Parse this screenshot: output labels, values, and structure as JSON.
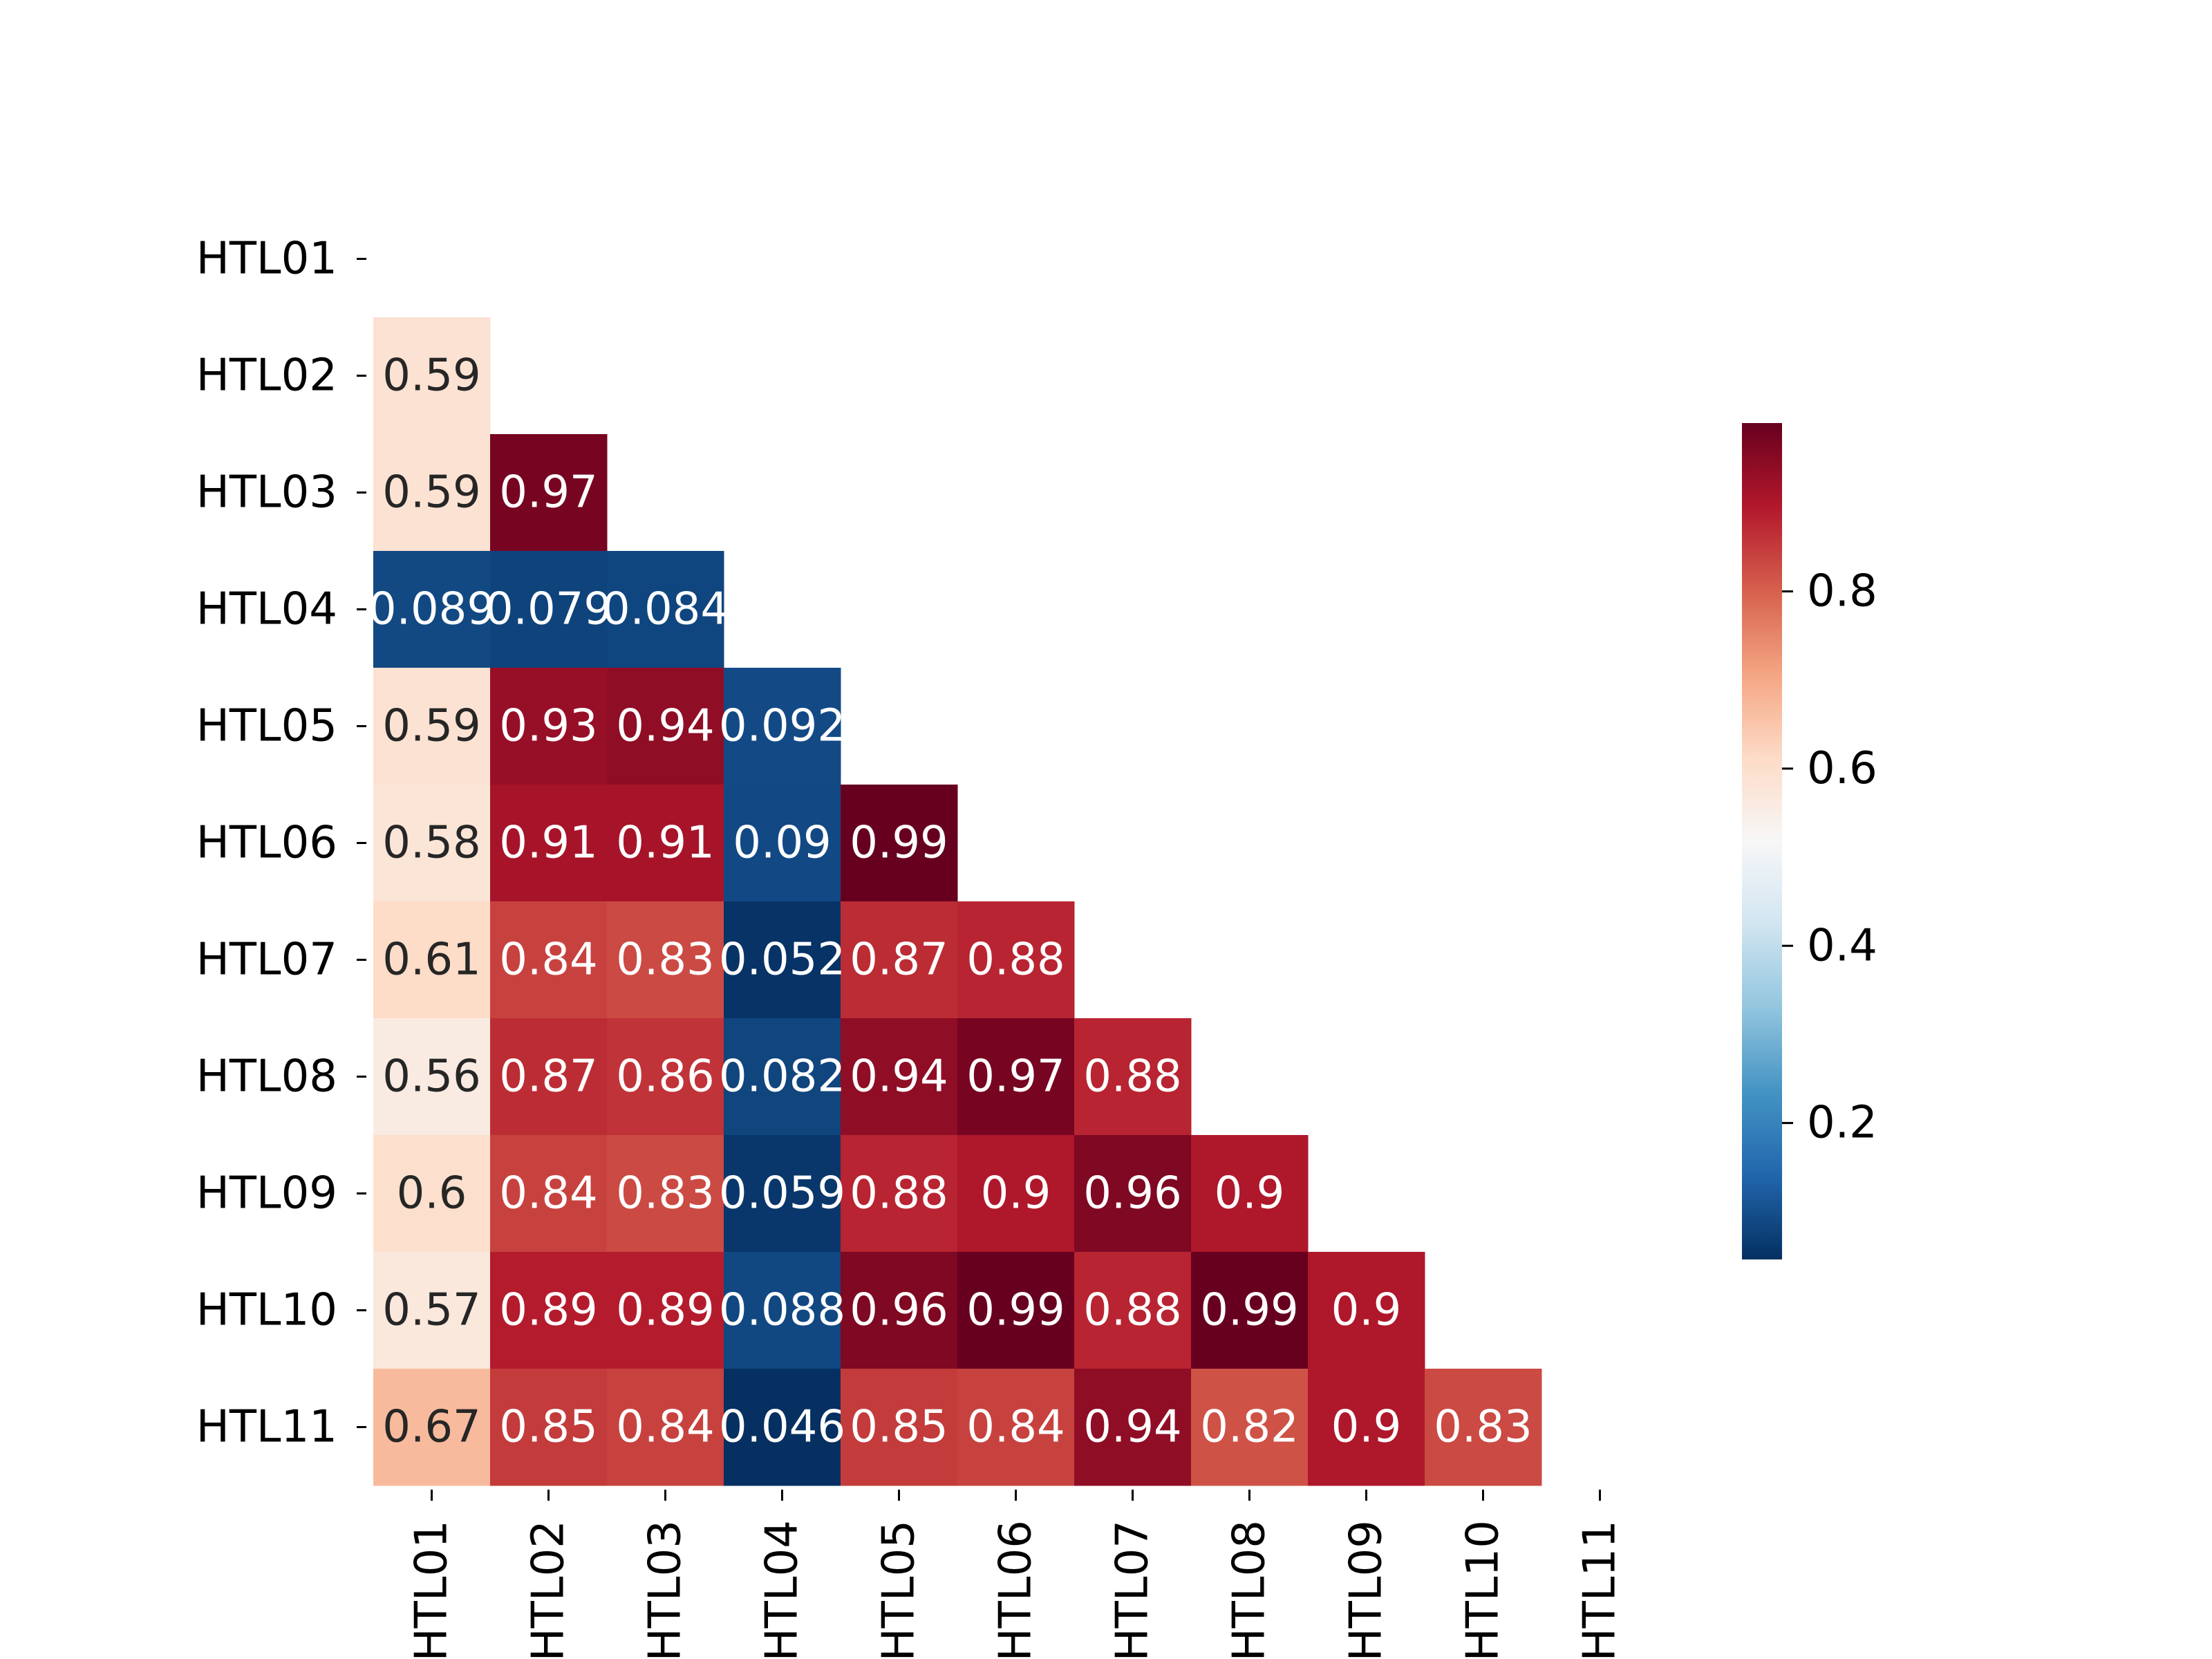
{
  "chart_data": {
    "type": "heatmap",
    "title": "",
    "xlabel": "",
    "ylabel": "",
    "labels": [
      "HTL01",
      "HTL02",
      "HTL03",
      "HTL04",
      "HTL05",
      "HTL06",
      "HTL07",
      "HTL08",
      "HTL09",
      "HTL10",
      "HTL11"
    ],
    "mask": "upper-triangle-including-diagonal",
    "matrix": [
      [
        null,
        null,
        null,
        null,
        null,
        null,
        null,
        null,
        null,
        null,
        null
      ],
      [
        0.59,
        null,
        null,
        null,
        null,
        null,
        null,
        null,
        null,
        null,
        null
      ],
      [
        0.59,
        0.97,
        null,
        null,
        null,
        null,
        null,
        null,
        null,
        null,
        null
      ],
      [
        0.089,
        0.079,
        0.084,
        null,
        null,
        null,
        null,
        null,
        null,
        null,
        null
      ],
      [
        0.59,
        0.93,
        0.94,
        0.092,
        null,
        null,
        null,
        null,
        null,
        null,
        null
      ],
      [
        0.58,
        0.91,
        0.91,
        0.09,
        0.99,
        null,
        null,
        null,
        null,
        null,
        null
      ],
      [
        0.61,
        0.84,
        0.83,
        0.052,
        0.87,
        0.88,
        null,
        null,
        null,
        null,
        null
      ],
      [
        0.56,
        0.87,
        0.86,
        0.082,
        0.94,
        0.97,
        0.88,
        null,
        null,
        null,
        null
      ],
      [
        0.6,
        0.84,
        0.83,
        0.059,
        0.88,
        0.9,
        0.96,
        0.9,
        null,
        null,
        null
      ],
      [
        0.57,
        0.89,
        0.89,
        0.088,
        0.96,
        0.99,
        0.88,
        0.99,
        0.9,
        null,
        null
      ],
      [
        0.67,
        0.85,
        0.84,
        0.046,
        0.85,
        0.84,
        0.94,
        0.82,
        0.9,
        0.83,
        null
      ]
    ],
    "annotations": [
      [
        null,
        null,
        null,
        null,
        null,
        null,
        null,
        null,
        null,
        null,
        null
      ],
      [
        "0.59",
        null,
        null,
        null,
        null,
        null,
        null,
        null,
        null,
        null,
        null
      ],
      [
        "0.59",
        "0.97",
        null,
        null,
        null,
        null,
        null,
        null,
        null,
        null,
        null
      ],
      [
        "0.089",
        "0.079",
        "0.084",
        null,
        null,
        null,
        null,
        null,
        null,
        null,
        null
      ],
      [
        "0.59",
        "0.93",
        "0.94",
        "0.092",
        null,
        null,
        null,
        null,
        null,
        null,
        null
      ],
      [
        "0.58",
        "0.91",
        "0.91",
        "0.09",
        "0.99",
        null,
        null,
        null,
        null,
        null,
        null
      ],
      [
        "0.61",
        "0.84",
        "0.83",
        "0.052",
        "0.87",
        "0.88",
        null,
        null,
        null,
        null,
        null
      ],
      [
        "0.56",
        "0.87",
        "0.86",
        "0.082",
        "0.94",
        "0.97",
        "0.88",
        null,
        null,
        null,
        null
      ],
      [
        "0.6",
        "0.84",
        "0.83",
        "0.059",
        "0.88",
        "0.9",
        "0.96",
        "0.9",
        null,
        null,
        null
      ],
      [
        "0.57",
        "0.89",
        "0.89",
        "0.088",
        "0.96",
        "0.99",
        "0.88",
        "0.99",
        "0.9",
        null,
        null
      ],
      [
        "0.67",
        "0.85",
        "0.84",
        "0.046",
        "0.85",
        "0.84",
        "0.94",
        "0.82",
        "0.9",
        "0.83",
        null
      ]
    ],
    "colormap": "RdBu_r",
    "vmin": 0.046,
    "vmax": 0.99,
    "colorbar": {
      "ticks": [
        0.2,
        0.4,
        0.6,
        0.8
      ],
      "tick_labels": [
        "0.2",
        "0.4",
        "0.6",
        "0.8"
      ]
    },
    "grid": false,
    "legend": "colorbar-right"
  }
}
